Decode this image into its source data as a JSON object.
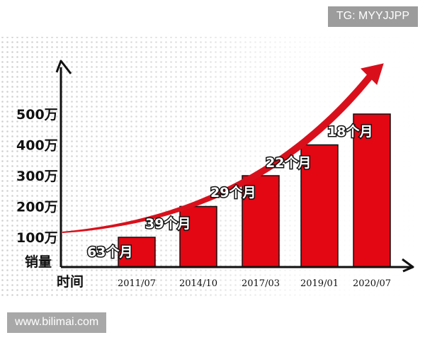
{
  "watermarks": {
    "top_right": "TG: MYYJJPP",
    "bottom_left": "www.bilimai.com"
  },
  "chart_data": {
    "type": "bar",
    "ylabel": "销量",
    "xlabel": "时间",
    "ylim": [
      0,
      500
    ],
    "yticks": [
      {
        "value": 100,
        "label": "100万"
      },
      {
        "value": 200,
        "label": "200万"
      },
      {
        "value": 300,
        "label": "300万"
      },
      {
        "value": 400,
        "label": "400万"
      },
      {
        "value": 500,
        "label": "500万"
      }
    ],
    "categories": [
      "2011/07",
      "2014/10",
      "2017/03",
      "2019/01",
      "2020/07"
    ],
    "values": [
      100,
      200,
      300,
      400,
      500
    ],
    "data_labels": [
      "63个月",
      "39个月",
      "29个月",
      "22个月",
      "18个月"
    ],
    "grid": false,
    "legend": "none",
    "colors": {
      "bar": "#e30613",
      "bar_edge": "#111111",
      "trend_arrow": "#d9101c",
      "axis": "#111111"
    }
  }
}
